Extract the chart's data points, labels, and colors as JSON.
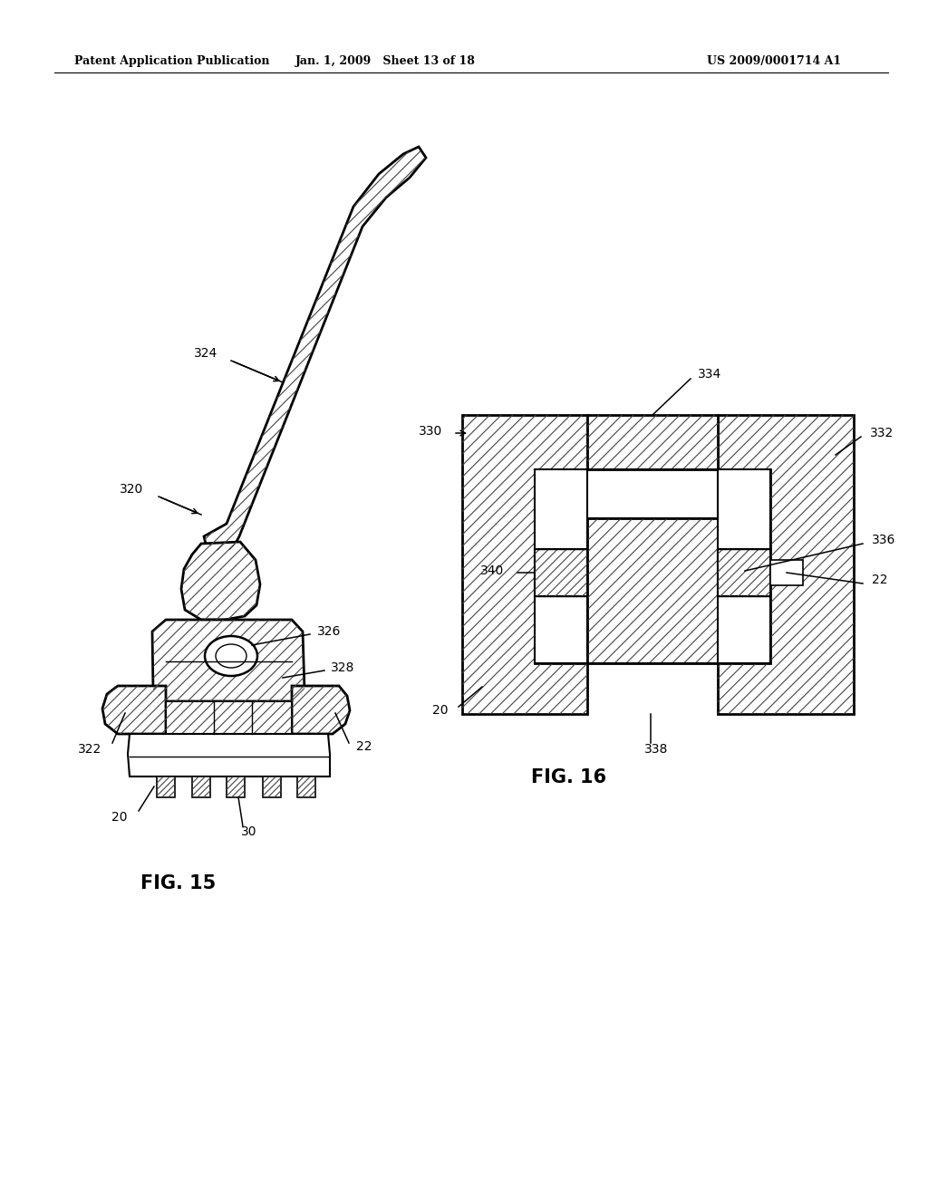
{
  "background_color": "#ffffff",
  "header_left": "Patent Application Publication",
  "header_center": "Jan. 1, 2009   Sheet 13 of 18",
  "header_right": "US 2009/0001714 A1",
  "fig15_label": "FIG. 15",
  "fig16_label": "FIG. 16",
  "labels_fig15": [
    "320",
    "324",
    "326",
    "328",
    "322",
    "22",
    "20",
    "30"
  ],
  "labels_fig16": [
    "330",
    "334",
    "332",
    "336",
    "22",
    "340",
    "20",
    "338"
  ]
}
